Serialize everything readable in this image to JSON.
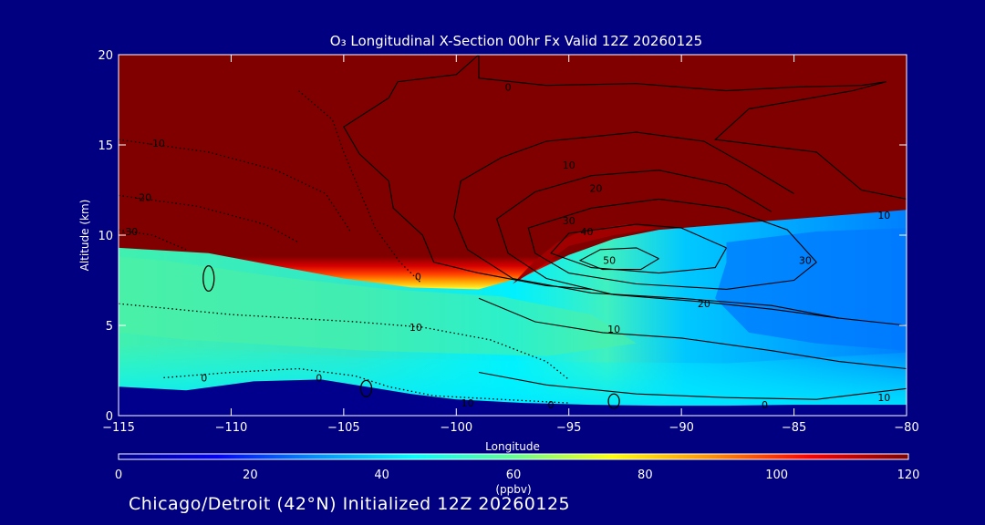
{
  "footer": {
    "label": "Chicago/Detroit (42°N) Initialized 12Z 20260125"
  },
  "chart_data": {
    "type": "heatmap",
    "title": "O₃ Longitudinal X-Section 00hr  Fx Valid 12Z 20260125",
    "xlabel": "Longitude",
    "ylabel": "Altitude (km)",
    "xlim": [
      -115,
      -80
    ],
    "ylim": [
      0,
      20
    ],
    "x_ticks": [
      -115,
      -110,
      -105,
      -100,
      -95,
      -90,
      -85,
      -80
    ],
    "x_tick_labels": [
      "−115",
      "−110",
      "−105",
      "−100",
      "−95",
      "−90",
      "−85",
      "−80"
    ],
    "y_ticks": [
      0,
      5,
      10,
      15,
      20
    ],
    "y_tick_labels": [
      "0",
      "5",
      "10",
      "15",
      "20"
    ],
    "colorbar": {
      "label": "(ppbv)",
      "min": 0,
      "max": 120,
      "ticks": [
        0,
        20,
        40,
        60,
        80,
        100,
        120
      ],
      "tick_labels": [
        "0",
        "20",
        "40",
        "60",
        "80",
        "100",
        "120"
      ],
      "colors": [
        "#00008c",
        "#0000ff",
        "#0090ff",
        "#00ffff",
        "#60ff90",
        "#ffff00",
        "#ff9000",
        "#ff0000",
        "#800000"
      ]
    },
    "field": {
      "tropopause_lon": [
        -115,
        -111,
        -108,
        -105,
        -102,
        -99,
        -97,
        -95,
        -93,
        -91,
        -89,
        -87,
        -85,
        -83,
        -81,
        -80
      ],
      "tropopause_alt": [
        9.3,
        9.0,
        8.3,
        7.6,
        7.1,
        7.0,
        7.7,
        8.9,
        9.8,
        10.3,
        10.5,
        10.7,
        10.9,
        11.1,
        11.3,
        11.4
      ],
      "surface_layer_lon": [
        -115,
        -112,
        -109,
        -106,
        -104,
        -102,
        -100,
        -97,
        -94,
        -91,
        -88,
        -85,
        -82,
        -80
      ],
      "surface_layer_alt": [
        1.6,
        1.4,
        1.9,
        2.0,
        1.6,
        1.2,
        0.9,
        0.7,
        0.6,
        0.55,
        0.55,
        0.6,
        0.6,
        0.6
      ],
      "lower_trop_ppbv": 45,
      "upper_trop_east_ppbv": 32,
      "stratosphere_ppbv": 120,
      "boundary_layer_ppbv": 8
    },
    "contour_levels": [
      0,
      10,
      20,
      30,
      40,
      50
    ],
    "contour_labels": [
      {
        "text": "0",
        "lon": -97.7,
        "alt": 18.2
      },
      {
        "text": "10",
        "lon": -95,
        "alt": 13.9
      },
      {
        "text": "20",
        "lon": -93.8,
        "alt": 12.6
      },
      {
        "text": "10",
        "lon": -81,
        "alt": 11.1
      },
      {
        "text": "30",
        "lon": -95,
        "alt": 10.8
      },
      {
        "text": "40",
        "lon": -94.2,
        "alt": 10.2
      },
      {
        "text": "50",
        "lon": -93.2,
        "alt": 8.6
      },
      {
        "text": "30",
        "lon": -84.5,
        "alt": 8.6
      },
      {
        "text": "20",
        "lon": -89,
        "alt": 6.2
      },
      {
        "text": "10",
        "lon": -93,
        "alt": 4.8
      },
      {
        "text": "0",
        "lon": -101.7,
        "alt": 7.7
      },
      {
        "text": "10",
        "lon": -101.8,
        "alt": 4.9
      },
      {
        "text": "0",
        "lon": -111.2,
        "alt": 2.1
      },
      {
        "text": "0",
        "lon": -106.1,
        "alt": 2.1
      },
      {
        "text": "10",
        "lon": -99.5,
        "alt": 0.7
      },
      {
        "text": "0",
        "lon": -95.8,
        "alt": 0.6
      },
      {
        "text": "0",
        "lon": -86.3,
        "alt": 0.6
      },
      {
        "text": "10",
        "lon": -81,
        "alt": 1.0
      },
      {
        "text": "-10",
        "lon": -113.3,
        "alt": 15.1
      },
      {
        "text": "-20",
        "lon": -113.9,
        "alt": 12.1
      },
      {
        "text": "-30",
        "lon": -114.5,
        "alt": 10.2
      }
    ]
  }
}
